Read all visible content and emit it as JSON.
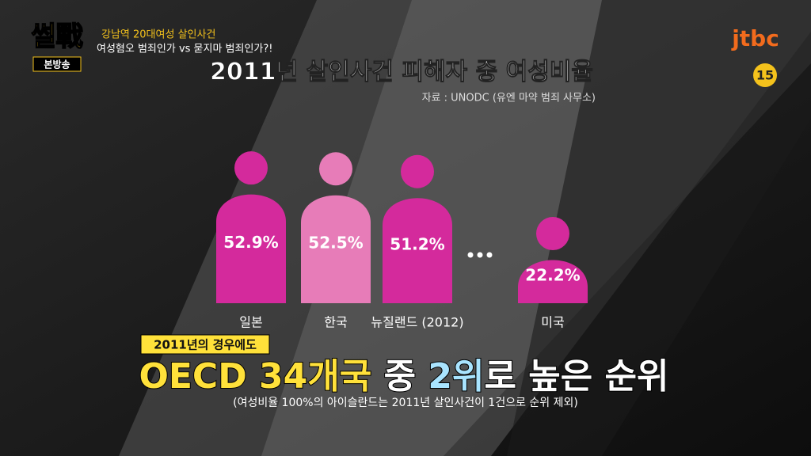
{
  "program": {
    "logo": "썰戰",
    "badge": "본방송",
    "headline": "강남역 20대여성 살인사건",
    "subhead": "여성혐오 범죄인가 vs 묻지마 범죄인가?!",
    "channel": "jtbc",
    "rating": "15"
  },
  "chart_data": {
    "type": "bar",
    "title": "2011년 살인사건 피해자 중 여성비율",
    "subtitle": "자료 : UNODC (유엔 마약 범죄 사무소)",
    "categories": [
      "일본",
      "한국",
      "뉴질랜드 (2012)",
      null,
      "미국"
    ],
    "values": [
      52.9,
      52.5,
      51.2,
      null,
      22.2
    ],
    "value_labels": [
      "52.9%",
      "52.5%",
      "51.2%",
      null,
      "22.2%"
    ],
    "colors": [
      "#d42a9c",
      "#e77cb8",
      "#d42a9c",
      null,
      "#d42a9c"
    ]
  },
  "caption": {
    "tag": "2011년의 경우에도",
    "parts": [
      {
        "text": "OECD 34개국",
        "color": "#ffe13a"
      },
      {
        "text": " 중 ",
        "color": "#ffffff"
      },
      {
        "text": "2위",
        "color": "#a9e4ff"
      },
      {
        "text": "로 높은 순위",
        "color": "#ffffff"
      }
    ],
    "note": "(여성비율 100%의 아이슬란드는 2011년 살인사건이 1건으로 순위 제외)"
  }
}
